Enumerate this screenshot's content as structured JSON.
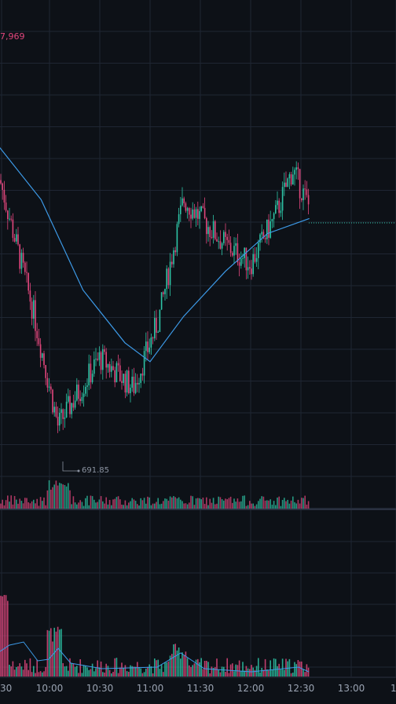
{
  "header": {
    "volume_text": "7,969"
  },
  "price_chart": {
    "min_marker_label": "691.85"
  },
  "time_axis": {
    "labels": [
      "30",
      "10:00",
      "10:30",
      "11:00",
      "11:30",
      "12:00",
      "12:30",
      "13:00",
      "1"
    ]
  },
  "colors": {
    "background": "#0d1117",
    "grid": "#1f2633",
    "up": "#2ec4a6",
    "down": "#e0467c",
    "ma_line": "#3d9be9",
    "separator": "#2a3140"
  },
  "chart_data": {
    "type": "candlestick",
    "title": "",
    "xlabel": "",
    "ylabel": "",
    "min_price": 691.85,
    "price_series_shape": [
      {
        "time": "09:30",
        "close_level": 0.78
      },
      {
        "time": "09:50",
        "close_level": 0.43
      },
      {
        "time": "10:05",
        "close_level": 0.12
      },
      {
        "time": "10:30",
        "close_level": 0.3
      },
      {
        "time": "10:50",
        "close_level": 0.22
      },
      {
        "time": "11:05",
        "close_level": 0.4
      },
      {
        "time": "11:20",
        "close_level": 0.72
      },
      {
        "time": "11:45",
        "close_level": 0.6
      },
      {
        "time": "12:00",
        "close_level": 0.55
      },
      {
        "time": "12:15",
        "close_level": 0.68
      },
      {
        "time": "12:25",
        "close_level": 0.8
      },
      {
        "time": "12:35",
        "close_level": 0.7
      }
    ],
    "moving_average_shape": [
      {
        "time": "09:30",
        "level": 0.86
      },
      {
        "time": "09:55",
        "level": 0.72
      },
      {
        "time": "10:20",
        "level": 0.48
      },
      {
        "time": "10:45",
        "level": 0.34
      },
      {
        "time": "11:00",
        "level": 0.29
      },
      {
        "time": "11:20",
        "level": 0.41
      },
      {
        "time": "11:45",
        "level": 0.53
      },
      {
        "time": "12:10",
        "level": 0.63
      },
      {
        "time": "12:35",
        "level": 0.67
      }
    ],
    "grid": true
  }
}
